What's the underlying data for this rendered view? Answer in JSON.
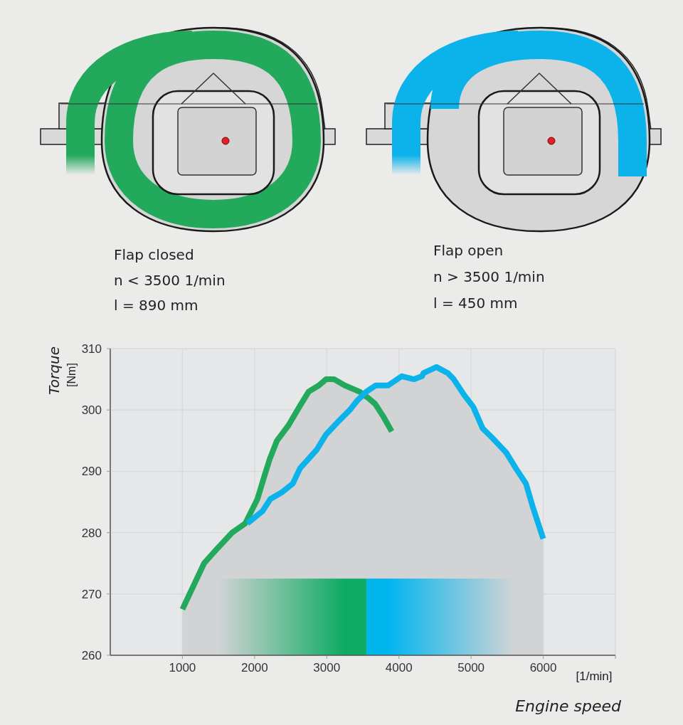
{
  "chart_data": {
    "type": "line",
    "xlabel": "Engine speed",
    "ylabel": "Torque",
    "annotations": [
      "Flap closed",
      "n < 3500 1/min",
      "l = 890 mm",
      "Flap open",
      "n > 3500 1/min",
      "l = 450 mm",
      "[Nm]",
      "[1/min]"
    ],
    "xlim": [
      0,
      7000
    ],
    "xticks": [
      1000,
      2000,
      3000,
      4000,
      5000,
      6000,
      {
        "value": 7000,
        "label": null
      }
    ],
    "ylim": [
      260,
      310
    ],
    "yticks": [
      260,
      270,
      280,
      290,
      300,
      310
    ],
    "grid": true,
    "bands": [
      {
        "axis": "x",
        "from": 1500,
        "to": 3550,
        "color": "#0eab63"
      },
      {
        "axis": "x",
        "from": 3550,
        "to": 5600,
        "color": "#00b5ee"
      }
    ],
    "series": [
      {
        "type": "area",
        "color": "#d2d3d5",
        "x": [
          1000,
          1300,
          1490,
          1690,
          1870,
          2040,
          2130,
          2210,
          2310,
          2470,
          2620,
          2750,
          2890,
          2990,
          3100,
          3250,
          3450,
          3550,
          3680,
          3850,
          4040,
          4210,
          4320,
          4340,
          4520,
          4680,
          4760,
          4900,
          5030,
          5160,
          5290,
          5490,
          5620,
          5760,
          5860,
          6000
        ],
        "values": [
          267.5,
          275,
          277.5,
          280,
          281.5,
          285.5,
          289,
          292,
          295,
          297.5,
          300.5,
          303,
          304,
          305,
          305,
          304,
          303,
          303,
          304,
          304,
          305.5,
          305,
          305.5,
          306,
          307,
          306,
          305,
          302.5,
          300.5,
          297,
          295.5,
          293,
          290.5,
          288,
          284,
          279
        ]
      },
      {
        "color": "#22a95c",
        "x": [
          1000,
          1300,
          1490,
          1690,
          1870,
          2040,
          2130,
          2210,
          2310,
          2470,
          2620,
          2750,
          2890,
          2990,
          3100,
          3250,
          3450,
          3570,
          3670,
          3780,
          3900
        ],
        "values": [
          267.5,
          275,
          277.5,
          280,
          281.5,
          285.5,
          289,
          292,
          295,
          297.5,
          300.5,
          303,
          304,
          305,
          305,
          304,
          303,
          302,
          301,
          299,
          296.5
        ]
      },
      {
        "color": "#0bb3ea",
        "x": [
          1900,
          2110,
          2220,
          2370,
          2530,
          2630,
          2860,
          2990,
          3150,
          3320,
          3420,
          3550,
          3680,
          3850,
          4040,
          4210,
          4320,
          4340,
          4520,
          4680,
          4760,
          4900,
          5030,
          5160,
          5290,
          5490,
          5620,
          5760,
          5860,
          6000
        ],
        "values": [
          281.5,
          283.5,
          285.5,
          286.5,
          288,
          290.5,
          293.5,
          296,
          298,
          300,
          301.5,
          303,
          304,
          304,
          305.5,
          305,
          305.5,
          306,
          307,
          306,
          305,
          302.5,
          300.5,
          297,
          295.5,
          293,
          290.5,
          288,
          284,
          279
        ]
      }
    ]
  }
}
